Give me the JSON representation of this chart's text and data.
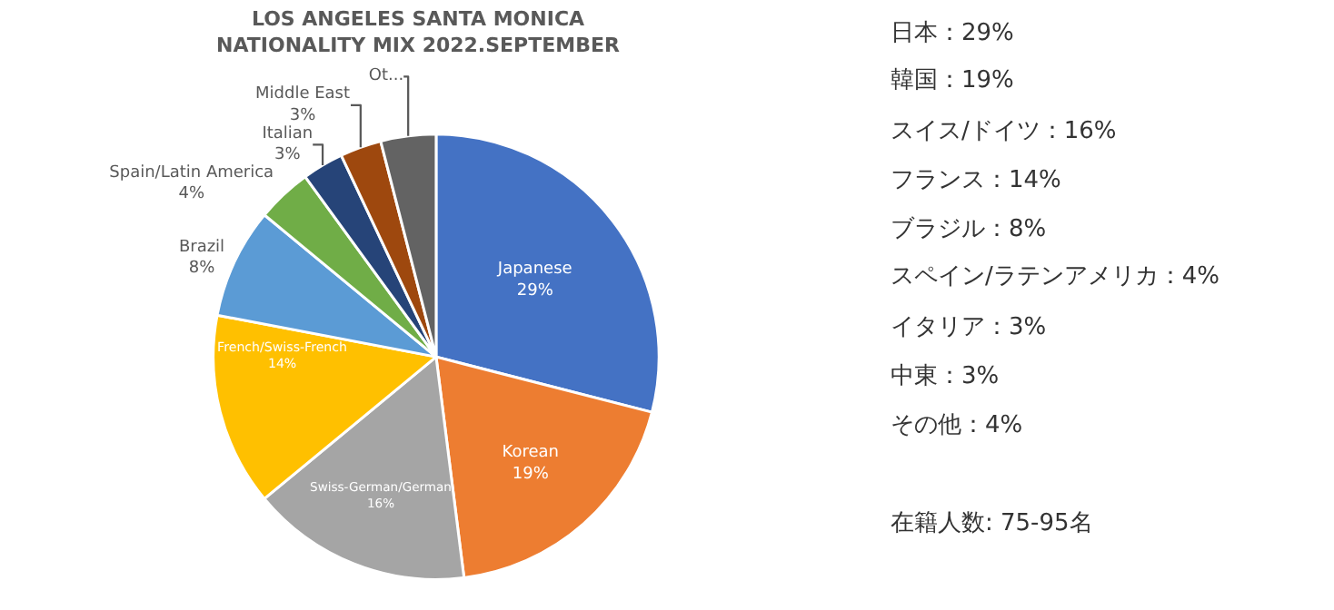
{
  "chart_data": {
    "type": "pie",
    "title": "LOS ANGELES SANTA MONICA\nNATIONALITY MIX 2022.SEPTEMBER",
    "categories": [
      "Japanese",
      "Korean",
      "Swiss-German/German",
      "French/Swiss-French",
      "Brazil",
      "Spain/Latin America",
      "Italian",
      "Middle East",
      "Ot..."
    ],
    "values": [
      29,
      19,
      16,
      14,
      8,
      4,
      3,
      3,
      4
    ],
    "value_labels": [
      "29%",
      "19%",
      "16%",
      "14%",
      "8%",
      "4%",
      "3%",
      "3%",
      null
    ],
    "colors": [
      "#4472c4",
      "#ed7d31",
      "#a5a5a5",
      "#ffc000",
      "#5b9bd5",
      "#70ad47",
      "#264478",
      "#9e480e",
      "#636363"
    ],
    "legend": false,
    "annotations": [
      "日本：29%",
      "韓国：19%",
      "スイス/ドイツ：16%",
      "フランス：14%",
      "ブラジル：8%",
      "スペイン/ラテンアメリカ：4%",
      "イタリア：3%",
      "中東：3%",
      "その他：4%",
      "在籍人数: 75-95名"
    ]
  }
}
